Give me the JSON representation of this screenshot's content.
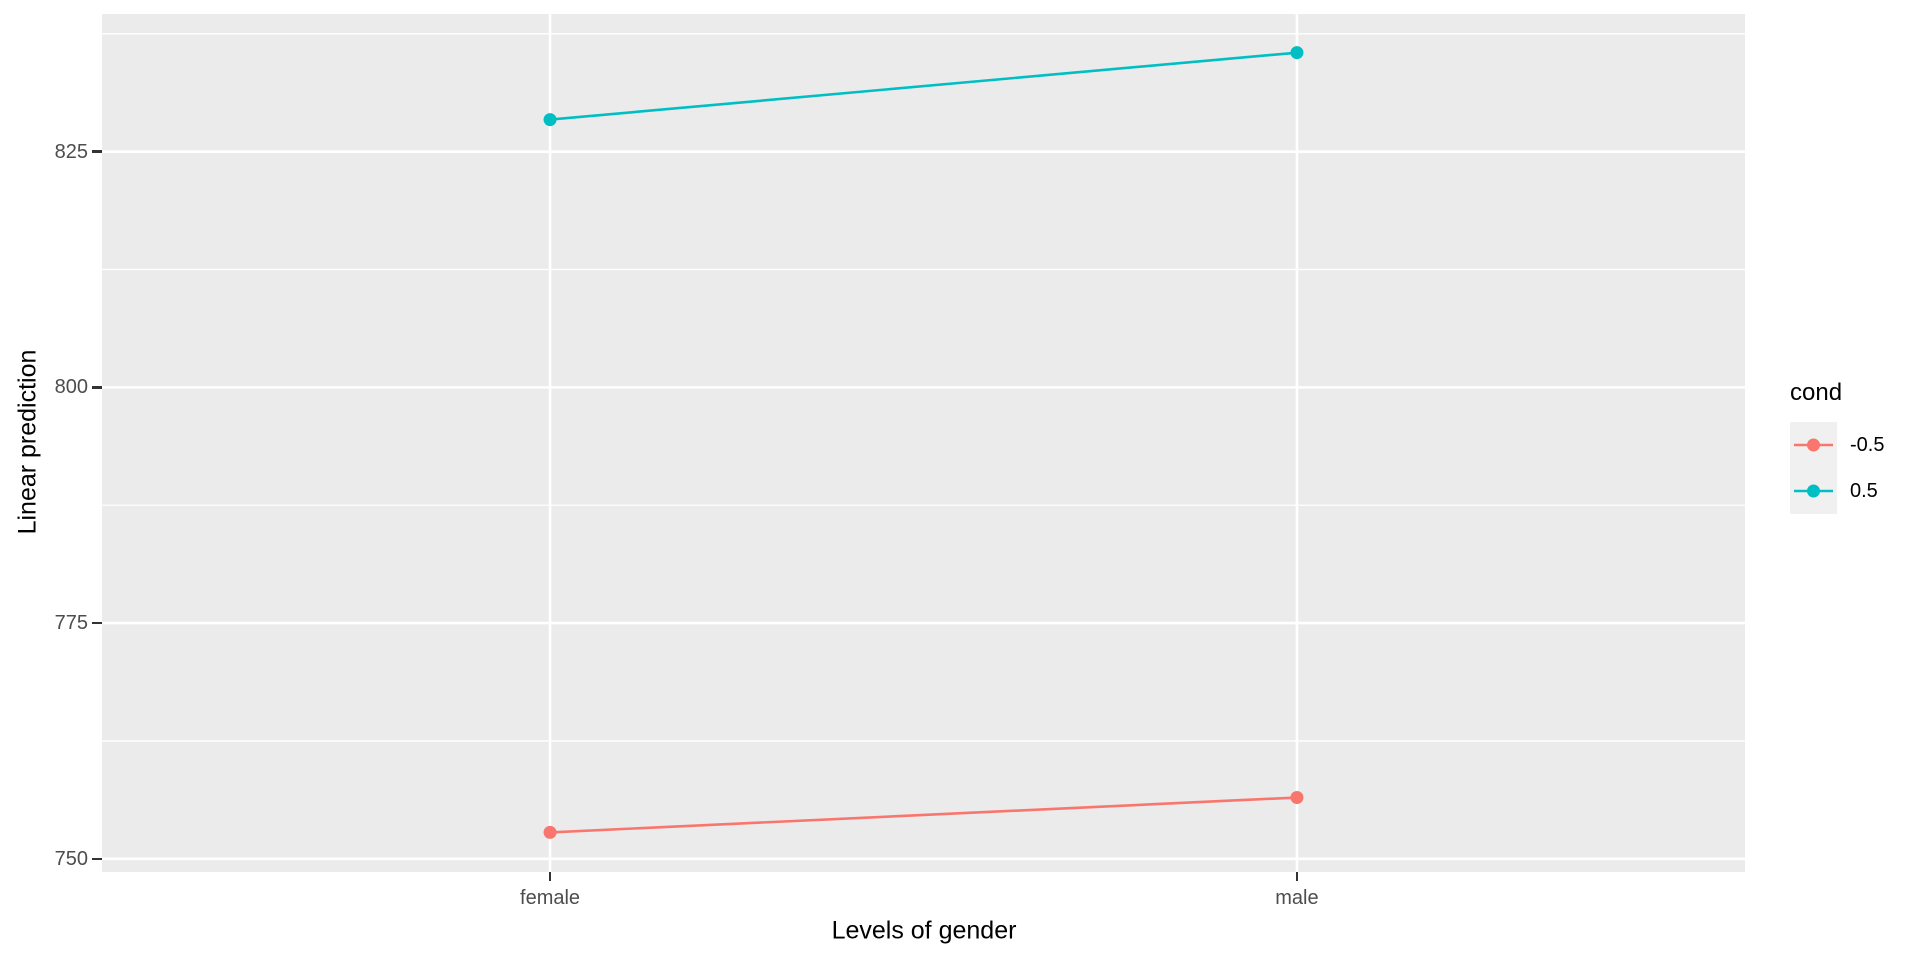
{
  "chart_data": {
    "type": "line",
    "title": "",
    "xlabel": "Levels of gender",
    "ylabel": "Linear prediction",
    "categories": [
      "female",
      "male"
    ],
    "x_positions": [
      0.2727,
      0.7273
    ],
    "series": [
      {
        "name": "-0.5",
        "color": "#F8766D",
        "values": [
          752.8,
          756.5
        ]
      },
      {
        "name": "0.5",
        "color": "#00BFC4",
        "values": [
          828.4,
          835.5
        ]
      }
    ],
    "legend": {
      "title": "cond",
      "position": "right",
      "entries": [
        "-0.5",
        "0.5"
      ]
    },
    "y_ticks": [
      750,
      775,
      800,
      825
    ],
    "y_minor_ticks": [
      762.5,
      787.5,
      812.5,
      837.5
    ],
    "ylim": [
      748.6,
      839.6
    ],
    "grid": true,
    "panel_bg": "#EBEBEB",
    "grid_color": "#FFFFFF",
    "tick_color": "#333333",
    "tick_label_color": "#4D4D4D",
    "axis_title_color": "#000000"
  }
}
